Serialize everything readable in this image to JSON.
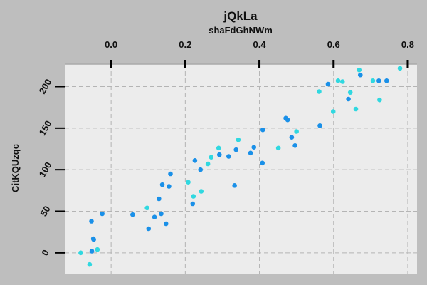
{
  "chart_data": {
    "type": "scatter",
    "title": "jQkLa",
    "subtitle": "shaFdGhNWm",
    "xlabel": "",
    "ylabel": "CitKQUzqc",
    "x_axis_position": "top",
    "xlim": [
      -0.125,
      0.825
    ],
    "ylim": [
      -25,
      227
    ],
    "x_ticks": [
      0.0,
      0.2,
      0.4,
      0.6,
      0.8
    ],
    "x_tick_labels": [
      "0.0",
      "0.2",
      "0.4",
      "0.6",
      "0.8"
    ],
    "y_ticks": [
      0,
      50,
      100,
      150,
      200
    ],
    "y_tick_labels": [
      "0",
      "50",
      "100",
      "150",
      "200"
    ],
    "grid": true,
    "legend": "none",
    "colors": {
      "blue": "#1a90e8",
      "cyan": "#30d8e0",
      "background": "#bebebe",
      "panel": "#ececec"
    },
    "series": [
      {
        "color": "#1a90e8",
        "points": [
          [
            -0.053,
            38
          ],
          [
            -0.048,
            17
          ],
          [
            -0.047,
            16
          ],
          [
            -0.052,
            2
          ],
          [
            -0.024,
            47
          ],
          [
            0.058,
            46
          ],
          [
            0.101,
            29
          ],
          [
            0.117,
            43
          ],
          [
            0.129,
            65
          ],
          [
            0.135,
            47
          ],
          [
            0.138,
            82
          ],
          [
            0.148,
            35
          ],
          [
            0.156,
            80
          ],
          [
            0.16,
            95
          ],
          [
            0.22,
            59
          ],
          [
            0.226,
            111
          ],
          [
            0.241,
            100
          ],
          [
            0.292,
            118
          ],
          [
            0.317,
            116
          ],
          [
            0.333,
            81
          ],
          [
            0.337,
            124
          ],
          [
            0.376,
            120
          ],
          [
            0.385,
            127
          ],
          [
            0.408,
            108
          ],
          [
            0.409,
            148
          ],
          [
            0.471,
            162
          ],
          [
            0.476,
            160
          ],
          [
            0.487,
            139
          ],
          [
            0.496,
            129
          ],
          [
            0.563,
            153
          ],
          [
            0.585,
            203
          ],
          [
            0.64,
            185
          ],
          [
            0.672,
            214
          ],
          [
            0.722,
            207
          ],
          [
            0.743,
            207
          ]
        ]
      },
      {
        "color": "#30d8e0",
        "points": [
          [
            -0.082,
            0
          ],
          [
            -0.058,
            -14
          ],
          [
            -0.037,
            4
          ],
          [
            0.097,
            54
          ],
          [
            0.208,
            85
          ],
          [
            0.222,
            68
          ],
          [
            0.243,
            74
          ],
          [
            0.261,
            107
          ],
          [
            0.27,
            115
          ],
          [
            0.29,
            126
          ],
          [
            0.343,
            136
          ],
          [
            0.451,
            126
          ],
          [
            0.5,
            146
          ],
          [
            0.561,
            194
          ],
          [
            0.599,
            170
          ],
          [
            0.612,
            207
          ],
          [
            0.624,
            206
          ],
          [
            0.645,
            193
          ],
          [
            0.66,
            173
          ],
          [
            0.669,
            220
          ],
          [
            0.706,
            207
          ],
          [
            0.724,
            184
          ],
          [
            0.779,
            222
          ]
        ]
      }
    ]
  }
}
